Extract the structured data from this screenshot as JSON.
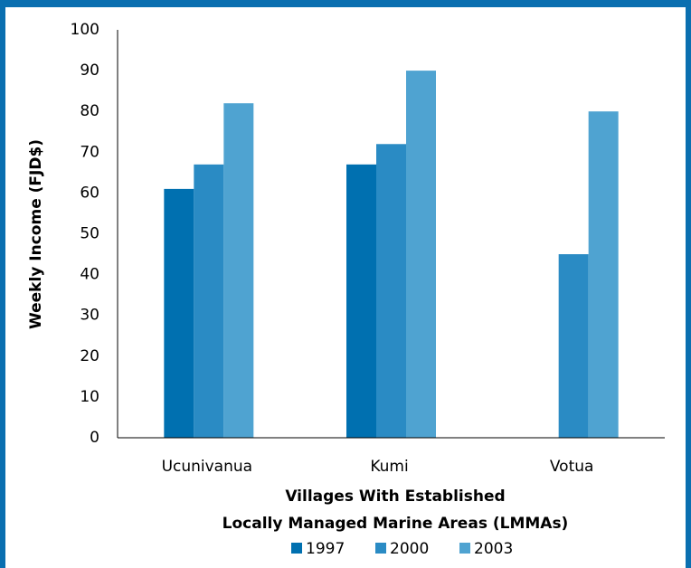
{
  "chart_data": {
    "type": "bar",
    "ylabel": "Weekly Income (FJD$)",
    "xlabel": [
      "Villages With Established",
      "Locally Managed Marine Areas (LMMAs)"
    ],
    "categories": [
      "Ucunivanua",
      "Kumi",
      "Votua"
    ],
    "series": [
      {
        "name": "1997",
        "color": "#0070b0",
        "values": [
          61,
          67,
          null
        ]
      },
      {
        "name": "2000",
        "color": "#2a8bc4",
        "values": [
          67,
          72,
          45
        ]
      },
      {
        "name": "2003",
        "color": "#4fa3d1",
        "values": [
          82,
          90,
          80
        ]
      }
    ],
    "ylim": [
      0,
      100
    ],
    "yticks": [
      0,
      10,
      20,
      30,
      40,
      50,
      60,
      70,
      80,
      90,
      100
    ],
    "legend": "bottom"
  }
}
